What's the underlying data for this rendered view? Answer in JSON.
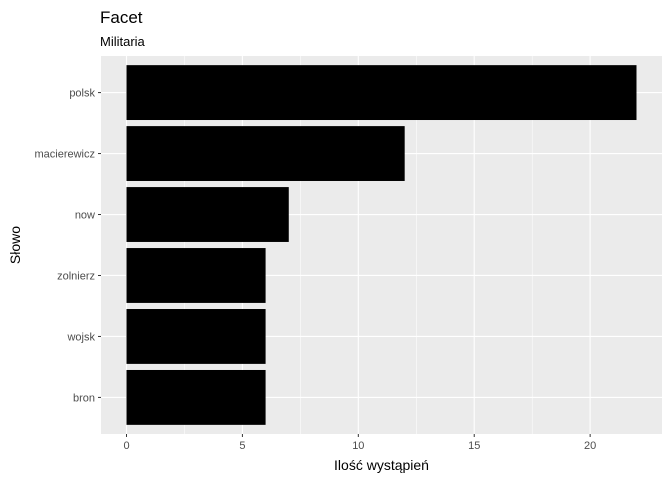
{
  "chart_data": {
    "type": "bar",
    "orientation": "horizontal",
    "title": "Facet",
    "subtitle": "Militaria",
    "xlabel": "Ilość wystąpień",
    "ylabel": "Słowo",
    "categories": [
      "polsk",
      "macierewicz",
      "now",
      "zolnierz",
      "wojsk",
      "bron"
    ],
    "values": [
      22,
      12,
      7,
      6,
      6,
      6
    ],
    "xlim": [
      -1.1,
      23.1
    ],
    "xticks": [
      0,
      5,
      10,
      15,
      20
    ],
    "grid": true,
    "colors": {
      "bar": "#000000",
      "panel": "#ebebeb",
      "grid_major": "#ffffff",
      "tick_text": "#4d4d4d"
    }
  }
}
